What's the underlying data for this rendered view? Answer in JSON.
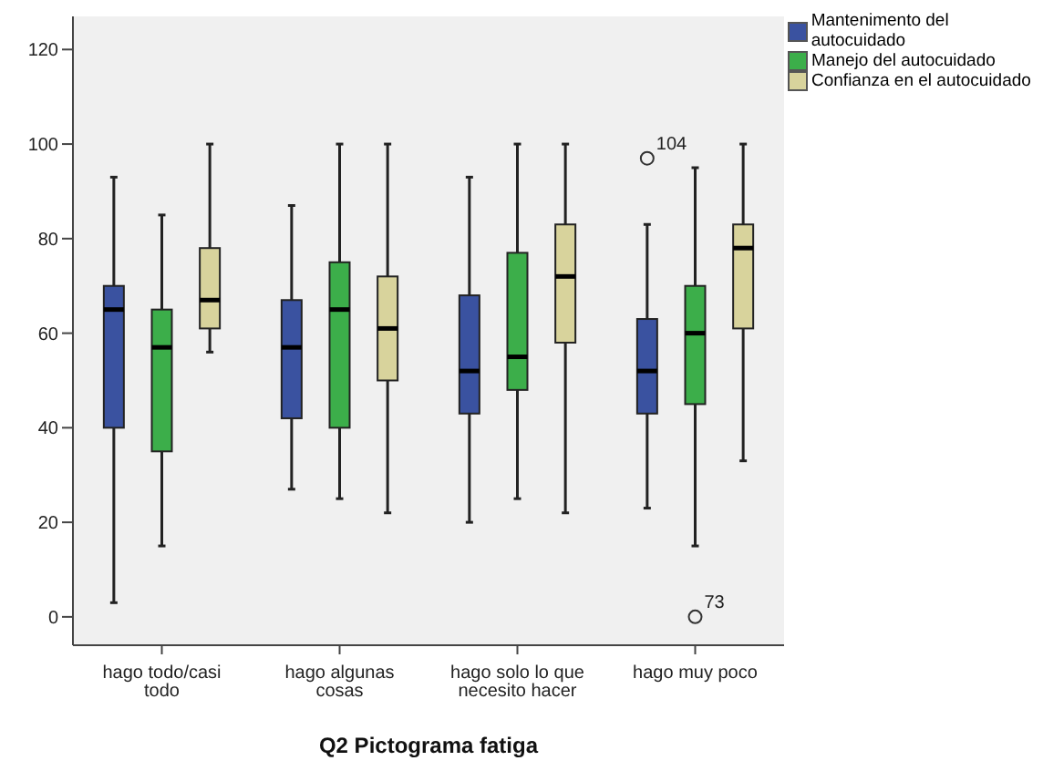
{
  "chart_data": {
    "type": "box",
    "xlabel": "Q2 Pictograma fatiga",
    "categories": [
      "hago todo/casi todo",
      "hago algunas cosas",
      "hago solo lo que necesito hacer",
      "hago muy poco"
    ],
    "series": [
      {
        "name": "Mantenimento del autocuidado",
        "color": "#3a52a0",
        "boxes": [
          {
            "low": 3,
            "q1": 40,
            "median": 65,
            "q3": 70,
            "high": 93
          },
          {
            "low": 27,
            "q1": 42,
            "median": 57,
            "q3": 67,
            "high": 87
          },
          {
            "low": 20,
            "q1": 43,
            "median": 52,
            "q3": 68,
            "high": 93
          },
          {
            "low": 23,
            "q1": 43,
            "median": 52,
            "q3": 63,
            "high": 83,
            "outliers": [
              97
            ]
          }
        ]
      },
      {
        "name": "Manejo del autocuidado",
        "color": "#3cae4a",
        "boxes": [
          {
            "low": 15,
            "q1": 35,
            "median": 57,
            "q3": 65,
            "high": 85
          },
          {
            "low": 25,
            "q1": 40,
            "median": 65,
            "q3": 75,
            "high": 100
          },
          {
            "low": 25,
            "q1": 48,
            "median": 55,
            "q3": 77,
            "high": 100
          },
          {
            "low": 15,
            "q1": 45,
            "median": 60,
            "q3": 70,
            "high": 95,
            "outliers": [
              0
            ]
          }
        ]
      },
      {
        "name": "Confianza en el autocuidado",
        "color": "#d8d39c",
        "boxes": [
          {
            "low": 56,
            "q1": 61,
            "median": 67,
            "q3": 78,
            "high": 100
          },
          {
            "low": 22,
            "q1": 50,
            "median": 61,
            "q3": 72,
            "high": 100
          },
          {
            "low": 22,
            "q1": 58,
            "median": 72,
            "q3": 83,
            "high": 100
          },
          {
            "low": 33,
            "q1": 61,
            "median": 78,
            "q3": 83,
            "high": 100
          }
        ]
      }
    ],
    "annotations": [
      "104",
      "73"
    ],
    "ylim": [
      -6,
      127
    ],
    "yticks": [
      0,
      20,
      40,
      60,
      80,
      100,
      120
    ],
    "grid": false,
    "legend": "top right"
  }
}
